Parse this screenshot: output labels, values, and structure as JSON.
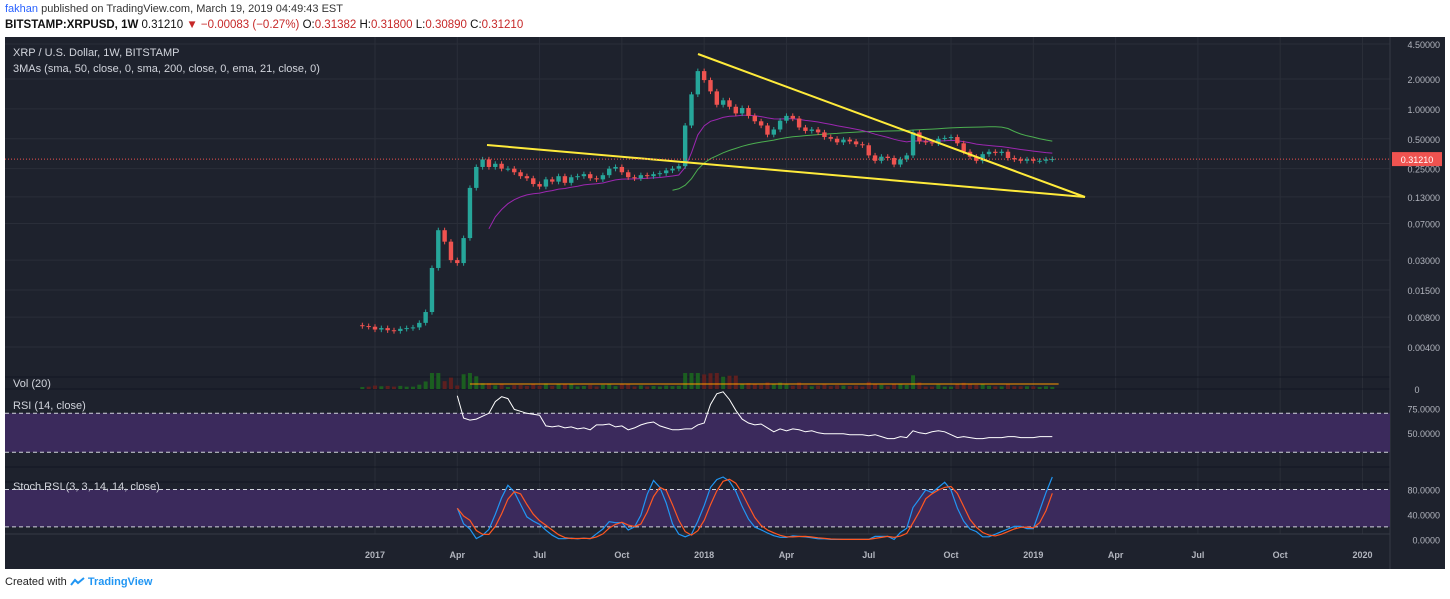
{
  "header": {
    "author": "fakhan",
    "published_text": " published on TradingView.com, March 19, 2019 04:49:43 EST"
  },
  "quote": {
    "symbol": "BITSTAMP:XRPUSD, 1W",
    "last": "0.31210",
    "change": "−0.00083 (−0.27%)",
    "o_label": "O:",
    "o": "0.31382",
    "h_label": "H:",
    "h": "0.31800",
    "l_label": "L:",
    "l": "0.30890",
    "c_label": "C:",
    "c": "0.31210"
  },
  "footer": {
    "created_with": "Created with",
    "brand": "TradingView"
  },
  "colors": {
    "background": "#1e222d",
    "up_candle": "#26a69a",
    "down_candle": "#ef5350",
    "trendline": "#ffeb3b",
    "sma50": "#4caf50",
    "sma200": "#e91e63",
    "ema21": "#9c27b0",
    "rsi_line": "#ffffff",
    "rsi_band": "#3b2a5c",
    "stoch_k": "#2196f3",
    "stoch_d": "#ff5722",
    "price_line": "#ef5350",
    "volume_ma": "#ff9800"
  },
  "chart_data": {
    "type": "candlestick",
    "title": "XRP / U.S. Dollar, 1W, BITSTAMP",
    "indicator_label": "3MAs (sma, 50, close, 0, sma, 200, close, 0, ema, 21, close, 0)",
    "y_scale": "log",
    "y_ticks": [
      "4.50000",
      "2.00000",
      "1.00000",
      "0.50000",
      "0.25000",
      "0.13000",
      "0.07000",
      "0.03000",
      "0.01500",
      "0.00800",
      "0.00400"
    ],
    "y_tick_values": [
      4.5,
      2.0,
      1.0,
      0.5,
      0.25,
      0.13,
      0.07,
      0.03,
      0.015,
      0.008,
      0.004
    ],
    "last_price": "0.31210",
    "x_ticks": [
      "2017",
      "Apr",
      "Jul",
      "Oct",
      "2018",
      "Apr",
      "Jul",
      "Oct",
      "2019",
      "Apr",
      "Jul",
      "Oct",
      "2020"
    ],
    "x_tick_weeks": [
      0,
      13,
      26,
      39,
      52,
      65,
      78,
      91,
      104,
      117,
      130,
      143,
      156
    ],
    "start_week_offset": -2,
    "closes": [
      0.0065,
      0.0064,
      0.006,
      0.0062,
      0.0059,
      0.0058,
      0.0061,
      0.0062,
      0.0063,
      0.007,
      0.009,
      0.025,
      0.06,
      0.046,
      0.03,
      0.028,
      0.05,
      0.16,
      0.26,
      0.31,
      0.26,
      0.28,
      0.25,
      0.25,
      0.23,
      0.21,
      0.2,
      0.175,
      0.165,
      0.195,
      0.185,
      0.21,
      0.18,
      0.205,
      0.21,
      0.22,
      0.2,
      0.195,
      0.215,
      0.25,
      0.26,
      0.23,
      0.205,
      0.2,
      0.215,
      0.21,
      0.22,
      0.225,
      0.24,
      0.25,
      0.265,
      0.68,
      1.4,
      2.4,
      1.95,
      1.5,
      1.1,
      1.22,
      1.05,
      0.9,
      1.02,
      0.85,
      0.75,
      0.68,
      0.55,
      0.62,
      0.76,
      0.85,
      0.8,
      0.65,
      0.6,
      0.62,
      0.58,
      0.52,
      0.5,
      0.46,
      0.49,
      0.47,
      0.44,
      0.43,
      0.34,
      0.3,
      0.33,
      0.32,
      0.275,
      0.31,
      0.34,
      0.58,
      0.47,
      0.46,
      0.45,
      0.5,
      0.51,
      0.52,
      0.45,
      0.37,
      0.33,
      0.3,
      0.35,
      0.37,
      0.36,
      0.37,
      0.32,
      0.31,
      0.3,
      0.31,
      0.3,
      0.3,
      0.31,
      0.3121
    ],
    "series": [
      {
        "name": "Vol (20)"
      },
      {
        "name": "RSI (14, close)",
        "values": [
          88,
          65,
          63,
          64,
          67,
          70,
          82,
          87,
          85,
          74,
          72,
          70,
          69,
          68,
          57,
          56,
          57,
          55,
          56,
          54,
          55,
          53,
          58,
          58,
          59,
          56,
          57,
          53,
          55,
          58,
          60,
          61,
          57,
          55,
          53,
          53,
          54,
          54,
          58,
          60,
          79,
          90,
          92,
          84,
          73,
          64,
          60,
          58,
          59,
          55,
          51,
          54,
          52,
          54,
          53,
          51,
          52,
          50,
          49,
          49,
          49,
          49,
          48,
          48,
          48,
          47,
          48,
          46,
          44,
          44,
          46,
          45,
          52,
          50,
          49,
          51,
          52,
          51,
          48,
          45,
          46,
          45,
          44,
          44,
          45,
          45,
          45,
          46,
          46,
          45,
          45,
          45,
          46,
          46,
          46
        ],
        "yticks": [
          "75.0000",
          "50.0000"
        ]
      },
      {
        "name": "Stoch RSI (3, 3, 14, 14, close)",
        "yticks": [
          "80.0000",
          "40.0000",
          "0.0000"
        ]
      }
    ]
  }
}
